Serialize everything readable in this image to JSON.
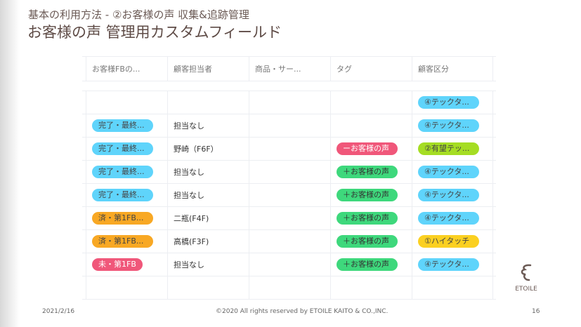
{
  "header": {
    "subtitle": "基本の利用方法 - ②お客様の声 収集&追跡管理",
    "title": "お客様の声 管理用カスタムフィールド"
  },
  "columns": [
    "お客様FBの...",
    "顧客担当者",
    "商品・サー...",
    "タグ",
    "顧客区分"
  ],
  "rows": [
    {
      "fb": null,
      "owner": "",
      "product": "",
      "tag": null,
      "segment": {
        "label": "④テックタ...",
        "color": "#5fd4fb",
        "text": "#444"
      }
    },
    {
      "fb": {
        "label": "完了・最終...",
        "color": "#5fd4fb",
        "text": "#444"
      },
      "owner": "担当なし",
      "product": "",
      "tag": null,
      "segment": {
        "label": "④テックタ...",
        "color": "#5fd4fb",
        "text": "#444"
      }
    },
    {
      "fb": {
        "label": "完了・最終...",
        "color": "#5fd4fb",
        "text": "#444"
      },
      "owner": "野崎（F6F）",
      "product": "",
      "tag": {
        "label": "ーお客様の声",
        "color": "#f0577a",
        "text": "#fff"
      },
      "segment": {
        "label": "②有望テッ...",
        "color": "#a5dd23",
        "text": "#444"
      }
    },
    {
      "fb": {
        "label": "完了・最終...",
        "color": "#5fd4fb",
        "text": "#444"
      },
      "owner": "担当なし",
      "product": "",
      "tag": {
        "label": "＋お客様の声",
        "color": "#3ed87c",
        "text": "#333"
      },
      "segment": {
        "label": "④テックタ...",
        "color": "#5fd4fb",
        "text": "#444"
      }
    },
    {
      "fb": {
        "label": "完了・最終...",
        "color": "#5fd4fb",
        "text": "#444"
      },
      "owner": "担当なし",
      "product": "",
      "tag": {
        "label": "＋お客様の声",
        "color": "#3ed87c",
        "text": "#333"
      },
      "segment": {
        "label": "④テックタ...",
        "color": "#5fd4fb",
        "text": "#444"
      }
    },
    {
      "fb": {
        "label": "済・第1FB...",
        "color": "#f8a824",
        "text": "#444"
      },
      "owner": "二瓶(F4F)",
      "product": "",
      "tag": {
        "label": "＋お客様の声",
        "color": "#3ed87c",
        "text": "#333"
      },
      "segment": {
        "label": "④テックタ...",
        "color": "#5fd4fb",
        "text": "#444"
      }
    },
    {
      "fb": {
        "label": "済・第1FB...",
        "color": "#f8a824",
        "text": "#444"
      },
      "owner": "高橋(F3F)",
      "product": "",
      "tag": {
        "label": "＋お客様の声",
        "color": "#3ed87c",
        "text": "#333"
      },
      "segment": {
        "label": "①ハイタッチ",
        "color": "#fbd021",
        "text": "#444"
      }
    },
    {
      "fb": {
        "label": "未・第1FB",
        "color": "#f0577a",
        "text": "#fff",
        "short": true
      },
      "owner": "担当なし",
      "product": "",
      "tag": {
        "label": "＋お客様の声",
        "color": "#3ed87c",
        "text": "#333"
      },
      "segment": {
        "label": "④テックタ...",
        "color": "#5fd4fb",
        "text": "#444"
      }
    },
    {
      "fb": null,
      "owner": "",
      "product": "",
      "tag": null,
      "segment": null
    }
  ],
  "logo": {
    "text": "ETOILE"
  },
  "footer": {
    "date": "2021/2/16",
    "copyright": "©2020 All rights reserved by ETOILE KAITO & CO.,INC.",
    "page": "16"
  }
}
